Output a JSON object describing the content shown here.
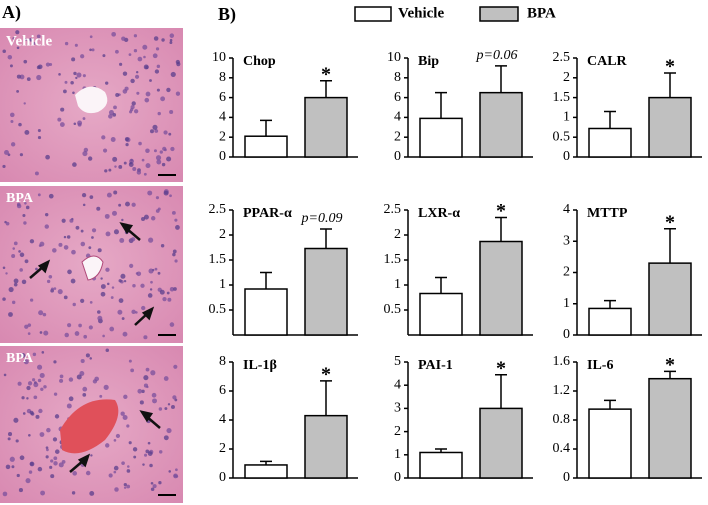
{
  "panel_a": {
    "label": "A)",
    "images": [
      "Vehicle",
      "BPA",
      "BPA"
    ]
  },
  "panel_b_label": "B)",
  "legend": [
    {
      "name": "Vehicle",
      "color": "#ffffff"
    },
    {
      "name": "BPA",
      "color": "#c0c0c0"
    }
  ],
  "chart_data": [
    {
      "type": "bar",
      "title": "Chop",
      "values": [
        2.1,
        6.0
      ],
      "errors": [
        1.6,
        1.7
      ],
      "annotation": "*",
      "ylim": [
        0,
        10
      ],
      "yticks": [
        0,
        2,
        4,
        6,
        8,
        10
      ]
    },
    {
      "type": "bar",
      "title": "Bip",
      "values": [
        3.9,
        6.5
      ],
      "errors": [
        2.6,
        2.7
      ],
      "annotation": "p=0.06",
      "ylim": [
        0,
        10
      ],
      "yticks": [
        0,
        2,
        4,
        6,
        8,
        10
      ]
    },
    {
      "type": "bar",
      "title": "CALR",
      "values": [
        0.72,
        1.5
      ],
      "errors": [
        0.43,
        0.62
      ],
      "annotation": "*",
      "ylim": [
        0,
        2.5
      ],
      "yticks": [
        0,
        0.5,
        1,
        1.5,
        2,
        2.5
      ]
    },
    {
      "type": "bar",
      "title": "PPAR-α",
      "values": [
        0.92,
        1.73
      ],
      "errors": [
        0.33,
        0.39
      ],
      "annotation": "p=0.09",
      "ylim": [
        0,
        2.5
      ],
      "yticks": [
        0.5,
        1,
        1.5,
        2,
        2.5
      ]
    },
    {
      "type": "bar",
      "title": "LXR-α",
      "values": [
        0.83,
        1.87
      ],
      "errors": [
        0.32,
        0.48
      ],
      "annotation": "*",
      "ylim": [
        0,
        2.5
      ],
      "yticks": [
        0.5,
        1,
        1.5,
        2,
        2.5
      ]
    },
    {
      "type": "bar",
      "title": "MTTP",
      "values": [
        0.85,
        2.3
      ],
      "errors": [
        0.25,
        1.1
      ],
      "annotation": "*",
      "ylim": [
        0,
        4
      ],
      "yticks": [
        0,
        1,
        2,
        3,
        4
      ]
    },
    {
      "type": "bar",
      "title": "IL-1β",
      "values": [
        0.9,
        4.3
      ],
      "errors": [
        0.25,
        2.4
      ],
      "annotation": "*",
      "ylim": [
        0,
        8
      ],
      "yticks": [
        0,
        2,
        4,
        6,
        8
      ]
    },
    {
      "type": "bar",
      "title": "PAI-1",
      "values": [
        1.1,
        3.0
      ],
      "errors": [
        0.15,
        1.45
      ],
      "annotation": "*",
      "ylim": [
        0,
        5
      ],
      "yticks": [
        0,
        1,
        2,
        3,
        4,
        5
      ]
    },
    {
      "type": "bar",
      "title": "IL-6",
      "values": [
        0.95,
        1.37
      ],
      "errors": [
        0.12,
        0.1
      ],
      "annotation": "*",
      "ylim": [
        0,
        1.6
      ],
      "yticks": [
        0,
        0.4,
        0.8,
        1.2,
        1.6
      ]
    }
  ]
}
